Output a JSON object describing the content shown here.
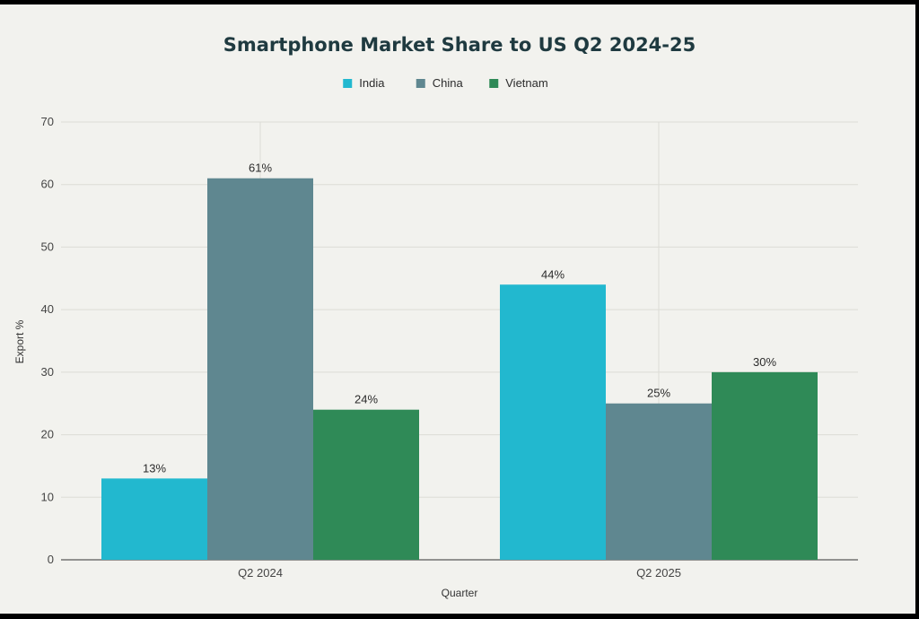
{
  "chart_data": {
    "type": "bar",
    "title": "Smartphone Market Share to US Q2 2024-25",
    "xlabel": "Quarter",
    "ylabel": "Export %",
    "categories": [
      "Q2 2024",
      "Q2 2025"
    ],
    "series": [
      {
        "name": "India",
        "color": "#22b8cf",
        "values": [
          13,
          44
        ],
        "labels": [
          "13%",
          "44%"
        ]
      },
      {
        "name": "China",
        "color": "#5f8790",
        "values": [
          61,
          25
        ],
        "labels": [
          "61%",
          "25%"
        ]
      },
      {
        "name": "Vietnam",
        "color": "#2f8a57",
        "values": [
          24,
          30
        ],
        "labels": [
          "24%",
          "30%"
        ]
      }
    ],
    "ylim": [
      0,
      70
    ],
    "yticks": [
      0,
      10,
      20,
      30,
      40,
      50,
      60,
      70
    ],
    "grid": true,
    "legend": "top-center"
  }
}
